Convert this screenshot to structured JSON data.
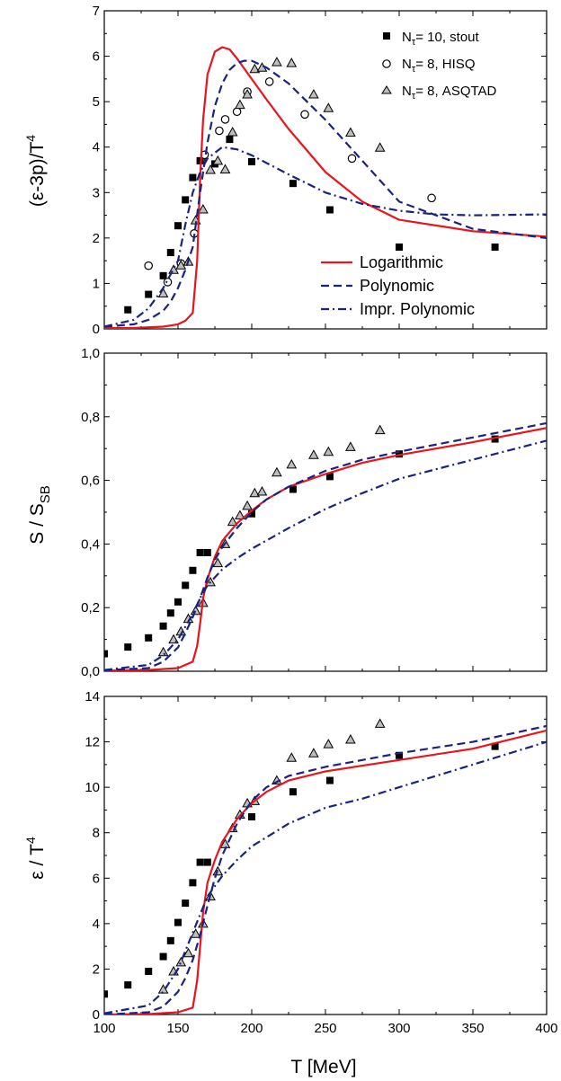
{
  "chart_data": [
    {
      "type": "scatter",
      "panel": "top",
      "ylabel": "(ε-3p)/T",
      "ylabel_sup": "4",
      "xlim": [
        100,
        400
      ],
      "ylim": [
        0,
        7
      ],
      "yticks": [
        0,
        1,
        2,
        3,
        4,
        5,
        6,
        7
      ],
      "ytick_labels": [
        "0",
        "1",
        "2",
        "3",
        "4",
        "5",
        "6",
        "7"
      ],
      "legend_points": [
        {
          "base": "N",
          "sub": "τ",
          "text": "= 10, stout",
          "marker": "square"
        },
        {
          "base": "N",
          "sub": "τ",
          "text": "= 8, HISQ",
          "marker": "circle"
        },
        {
          "base": "N",
          "sub": "τ",
          "text": "= 8, ASQTAD",
          "marker": "triangle"
        }
      ],
      "legend_lines": [
        {
          "name": "Logarithmic",
          "color": "#e8141e",
          "dash": "solid"
        },
        {
          "name": "Polynomic",
          "color": "#1a237e",
          "dash": "dashed"
        },
        {
          "name": "Impr. Polynomic",
          "color": "#1a237e",
          "dash": "dashdot"
        }
      ],
      "series": [
        {
          "name": "Nτ= 10, stout",
          "marker": "square",
          "color": "#000000",
          "x": [
            116,
            130,
            140,
            145,
            150,
            155,
            160,
            165,
            175,
            185,
            200,
            228,
            253,
            300,
            365
          ],
          "y": [
            0.42,
            0.76,
            1.17,
            1.68,
            2.27,
            2.84,
            3.33,
            3.7,
            3.63,
            4.17,
            3.68,
            3.2,
            2.62,
            1.8,
            1.8
          ]
        },
        {
          "name": "Nτ= 8, HISQ",
          "marker": "circle",
          "color": "#000000",
          "x": [
            130,
            143,
            152,
            161,
            168,
            178,
            182,
            190,
            197,
            212,
            236,
            268,
            322
          ],
          "y": [
            1.39,
            1.03,
            1.44,
            2.1,
            3.83,
            4.36,
            4.61,
            4.78,
            5.22,
            5.44,
            4.72,
            3.75,
            2.88
          ]
        },
        {
          "name": "Nτ= 8, ASQTAD",
          "marker": "triangle",
          "color": "#000000",
          "x": [
            140,
            147,
            152,
            157,
            162,
            167,
            172,
            177,
            182,
            187,
            192,
            197,
            202,
            207,
            217,
            227,
            242,
            252,
            267,
            287
          ],
          "y": [
            0.78,
            1.3,
            1.4,
            1.48,
            2.39,
            2.63,
            3.5,
            3.7,
            3.51,
            4.33,
            4.93,
            5.16,
            5.72,
            5.75,
            5.87,
            5.85,
            5.16,
            4.86,
            4.32,
            3.99
          ]
        }
      ],
      "curves": [
        {
          "name": "Logarithmic",
          "color": "#e8141e",
          "dash": "solid",
          "x": [
            100,
            120,
            140,
            150,
            155,
            160,
            163,
            165,
            167,
            170,
            175,
            180,
            185,
            190,
            200,
            210,
            225,
            250,
            275,
            300,
            350,
            400
          ],
          "y": [
            0.02,
            0.02,
            0.05,
            0.1,
            0.18,
            0.35,
            1.5,
            3.3,
            4.6,
            5.6,
            6.1,
            6.2,
            6.15,
            5.95,
            5.5,
            5.05,
            4.4,
            3.45,
            2.8,
            2.4,
            2.15,
            2.03
          ]
        },
        {
          "name": "Polynomic",
          "color": "#1a237e",
          "dash": "dashed",
          "x": [
            100,
            120,
            130,
            140,
            145,
            150,
            155,
            160,
            165,
            170,
            175,
            180,
            185,
            190,
            195,
            200,
            210,
            225,
            250,
            275,
            300,
            350,
            400
          ],
          "y": [
            0.05,
            0.1,
            0.2,
            0.4,
            0.6,
            0.9,
            1.3,
            1.8,
            3.0,
            4.1,
            4.9,
            5.4,
            5.7,
            5.85,
            5.9,
            5.9,
            5.75,
            5.4,
            4.6,
            3.7,
            2.8,
            2.2,
            2.0
          ]
        },
        {
          "name": "Impr. Polynomic",
          "color": "#1a237e",
          "dash": "dashdot",
          "x": [
            100,
            120,
            130,
            140,
            150,
            155,
            160,
            165,
            170,
            180,
            190,
            200,
            225,
            250,
            275,
            300,
            325,
            350,
            400
          ],
          "y": [
            0.05,
            0.2,
            0.45,
            0.9,
            1.5,
            2.3,
            3.0,
            3.45,
            3.75,
            4.0,
            3.95,
            3.82,
            3.4,
            3.0,
            2.75,
            2.6,
            2.52,
            2.5,
            2.52
          ]
        }
      ]
    },
    {
      "type": "scatter",
      "panel": "middle",
      "ylabel": "S / S",
      "ylabel_sub": "SB",
      "xlim": [
        100,
        400
      ],
      "ylim": [
        0,
        1.0
      ],
      "yticks": [
        0,
        0.2,
        0.4,
        0.6,
        0.8,
        1.0
      ],
      "ytick_labels": [
        "0,0",
        "0,2",
        "0,4",
        "0,6",
        "0,8",
        "1,0"
      ],
      "series": [
        {
          "name": "Nτ= 10, stout",
          "marker": "square",
          "color": "#000000",
          "x": [
            100,
            116,
            130,
            140,
            145,
            150,
            155,
            160,
            165,
            170,
            200,
            228,
            253,
            300,
            365
          ],
          "y": [
            0.055,
            0.076,
            0.105,
            0.142,
            0.183,
            0.218,
            0.27,
            0.317,
            0.373,
            0.373,
            0.495,
            0.572,
            0.612,
            0.683,
            0.73
          ]
        },
        {
          "name": "Nτ= 8, ASQTAD",
          "marker": "triangle",
          "color": "#000000",
          "x": [
            140,
            147,
            152,
            157,
            162,
            167,
            172,
            177,
            182,
            187,
            192,
            197,
            202,
            207,
            217,
            227,
            242,
            252,
            267,
            287
          ],
          "y": [
            0.06,
            0.1,
            0.125,
            0.165,
            0.19,
            0.215,
            0.28,
            0.34,
            0.4,
            0.47,
            0.49,
            0.52,
            0.56,
            0.565,
            0.625,
            0.65,
            0.68,
            0.69,
            0.705,
            0.758
          ]
        }
      ],
      "curves": [
        {
          "name": "Logarithmic",
          "color": "#e8141e",
          "dash": "solid",
          "x": [
            100,
            130,
            150,
            160,
            163,
            165,
            167,
            170,
            175,
            180,
            190,
            200,
            210,
            225,
            250,
            275,
            300,
            350,
            400
          ],
          "y": [
            0.002,
            0.004,
            0.01,
            0.03,
            0.08,
            0.15,
            0.23,
            0.29,
            0.36,
            0.41,
            0.465,
            0.505,
            0.54,
            0.58,
            0.62,
            0.655,
            0.68,
            0.72,
            0.765
          ]
        },
        {
          "name": "Polynomic",
          "color": "#1a237e",
          "dash": "dashed",
          "x": [
            100,
            130,
            140,
            150,
            155,
            160,
            165,
            170,
            175,
            180,
            190,
            200,
            210,
            225,
            250,
            275,
            300,
            350,
            400
          ],
          "y": [
            0.003,
            0.01,
            0.03,
            0.075,
            0.12,
            0.17,
            0.23,
            0.295,
            0.35,
            0.39,
            0.45,
            0.5,
            0.54,
            0.58,
            0.63,
            0.665,
            0.69,
            0.735,
            0.78
          ]
        },
        {
          "name": "Impr. Polynomic",
          "color": "#1a237e",
          "dash": "dashdot",
          "x": [
            100,
            130,
            140,
            150,
            155,
            160,
            165,
            170,
            180,
            190,
            200,
            225,
            250,
            275,
            300,
            350,
            400
          ],
          "y": [
            0.004,
            0.02,
            0.05,
            0.1,
            0.14,
            0.18,
            0.23,
            0.27,
            0.32,
            0.355,
            0.385,
            0.45,
            0.51,
            0.56,
            0.605,
            0.665,
            0.725
          ]
        }
      ]
    },
    {
      "type": "scatter",
      "panel": "bottom",
      "ylabel": "ε / T",
      "ylabel_sup": "4",
      "xlabel": "T [MeV]",
      "xlim": [
        100,
        400
      ],
      "ylim": [
        0,
        14
      ],
      "xticks": [
        100,
        150,
        200,
        250,
        300,
        350,
        400
      ],
      "xtick_labels": [
        "100",
        "150",
        "200",
        "250",
        "300",
        "350",
        "400"
      ],
      "yticks": [
        0,
        2,
        4,
        6,
        8,
        10,
        12,
        14
      ],
      "ytick_labels": [
        "0",
        "2",
        "4",
        "6",
        "8",
        "10",
        "12",
        "14"
      ],
      "series": [
        {
          "name": "Nτ= 10, stout",
          "marker": "square",
          "color": "#000000",
          "x": [
            100,
            116,
            130,
            140,
            145,
            150,
            155,
            160,
            165,
            170,
            200,
            228,
            253,
            300,
            365
          ],
          "y": [
            0.9,
            1.3,
            1.9,
            2.55,
            3.25,
            4.05,
            4.9,
            5.8,
            6.7,
            6.7,
            8.7,
            9.8,
            10.3,
            11.4,
            11.8
          ]
        },
        {
          "name": "Nτ= 8, ASQTAD",
          "marker": "triangle",
          "color": "#000000",
          "x": [
            140,
            147,
            152,
            157,
            162,
            167,
            172,
            177,
            182,
            187,
            192,
            197,
            202,
            217,
            227,
            242,
            252,
            267,
            287
          ],
          "y": [
            1.1,
            1.9,
            2.3,
            2.7,
            3.55,
            4.0,
            5.2,
            6.3,
            7.5,
            8.2,
            8.8,
            9.3,
            9.4,
            10.3,
            11.3,
            11.5,
            11.9,
            12.1,
            12.8
          ]
        }
      ],
      "curves": [
        {
          "name": "Logarithmic",
          "color": "#e8141e",
          "dash": "solid",
          "x": [
            100,
            130,
            150,
            160,
            163,
            165,
            167,
            170,
            175,
            180,
            190,
            200,
            210,
            225,
            250,
            275,
            300,
            350,
            400
          ],
          "y": [
            0.0,
            0.02,
            0.1,
            0.3,
            1.5,
            3.0,
            4.5,
            5.8,
            6.8,
            7.6,
            8.6,
            9.3,
            9.8,
            10.3,
            10.7,
            10.95,
            11.2,
            11.7,
            12.5
          ]
        },
        {
          "name": "Polynomic",
          "color": "#1a237e",
          "dash": "dashed",
          "x": [
            100,
            130,
            140,
            150,
            155,
            160,
            165,
            170,
            175,
            180,
            190,
            200,
            210,
            225,
            250,
            275,
            300,
            350,
            400
          ],
          "y": [
            0.0,
            0.1,
            0.35,
            1.0,
            1.6,
            2.4,
            3.5,
            4.8,
            6.0,
            7.0,
            8.4,
            9.4,
            10.0,
            10.5,
            10.9,
            11.2,
            11.5,
            12.0,
            12.7
          ]
        },
        {
          "name": "Impr. Polynomic",
          "color": "#1a237e",
          "dash": "dashdot",
          "x": [
            100,
            130,
            140,
            150,
            155,
            160,
            165,
            170,
            180,
            190,
            200,
            225,
            250,
            275,
            300,
            350,
            400
          ],
          "y": [
            0.05,
            0.4,
            1.0,
            2.0,
            2.8,
            3.6,
            4.4,
            5.2,
            6.1,
            6.8,
            7.4,
            8.4,
            9.1,
            9.5,
            10.0,
            11.0,
            12.0
          ]
        }
      ]
    }
  ]
}
